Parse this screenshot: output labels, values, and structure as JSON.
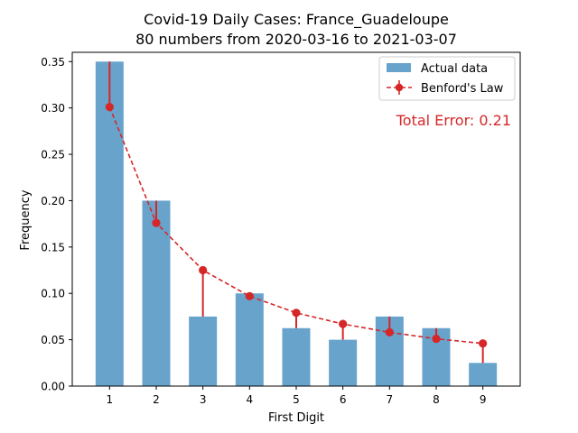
{
  "chart_data": {
    "type": "bar",
    "title": "Covid-19 Daily Cases: France_Guadeloupe",
    "subtitle": "80 numbers from 2020-03-16 to 2021-03-07",
    "xlabel": "First Digit",
    "ylabel": "Frequency",
    "categories": [
      "1",
      "2",
      "3",
      "4",
      "5",
      "6",
      "7",
      "8",
      "9"
    ],
    "ylim": [
      0,
      0.36
    ],
    "yticks": [
      "0.00",
      "0.05",
      "0.10",
      "0.15",
      "0.20",
      "0.25",
      "0.30",
      "0.35"
    ],
    "series": [
      {
        "name": "Actual data",
        "kind": "bar",
        "color": "#5b9bc8",
        "values": [
          0.35,
          0.2,
          0.075,
          0.1,
          0.0625,
          0.05,
          0.075,
          0.0625,
          0.025
        ]
      },
      {
        "name": "Benford's Law",
        "kind": "line",
        "color": "#d62728",
        "values": [
          0.301,
          0.176,
          0.125,
          0.097,
          0.079,
          0.067,
          0.058,
          0.051,
          0.046
        ]
      }
    ],
    "annotation": "Total Error: 0.21",
    "grid": false,
    "legend_position": "top-right"
  }
}
